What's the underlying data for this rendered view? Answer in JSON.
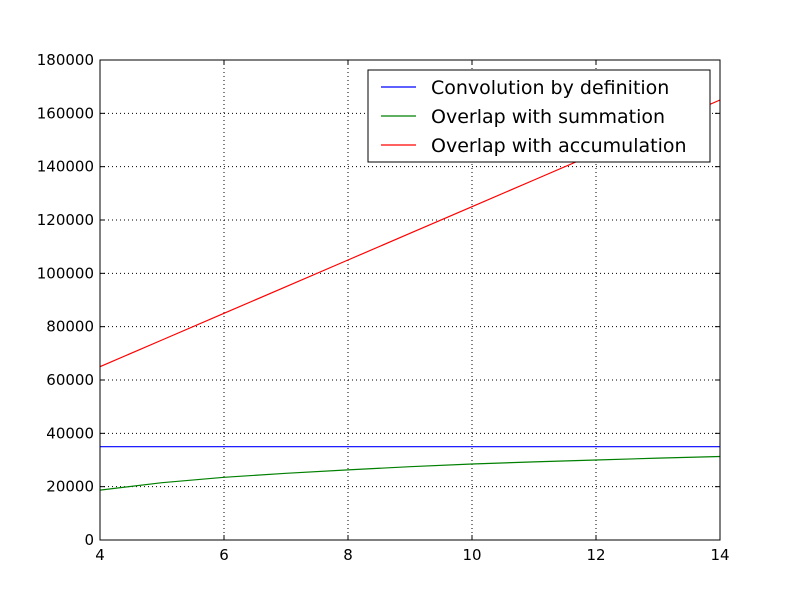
{
  "chart_data": {
    "type": "line",
    "title": "",
    "xlabel": "",
    "ylabel": "",
    "xlim": [
      4,
      14
    ],
    "ylim": [
      0,
      180000
    ],
    "x_ticks": [
      4,
      6,
      8,
      10,
      12,
      14
    ],
    "y_ticks": [
      0,
      20000,
      40000,
      60000,
      80000,
      100000,
      120000,
      140000,
      160000,
      180000
    ],
    "x_tick_labels": [
      "4",
      "6",
      "8",
      "10",
      "12",
      "14"
    ],
    "y_tick_labels": [
      "0",
      "20000",
      "40000",
      "60000",
      "80000",
      "100000",
      "120000",
      "140000",
      "160000",
      "180000"
    ],
    "grid": true,
    "legend_position": "top-right",
    "x": [
      4,
      5,
      6,
      7,
      8,
      9,
      10,
      11,
      12,
      13,
      14
    ],
    "series": [
      {
        "name": "Convolution by definition",
        "color": "#0000ff",
        "values": [
          35000,
          35000,
          35000,
          35000,
          35000,
          35000,
          35000,
          35000,
          35000,
          35000,
          35000
        ]
      },
      {
        "name": "Overlap with summation",
        "color": "#008000",
        "values": [
          18700,
          21500,
          23500,
          25000,
          26300,
          27500,
          28500,
          29300,
          30000,
          30700,
          31300
        ]
      },
      {
        "name": "Overlap with accumulation",
        "color": "#ff0000",
        "values": [
          65000,
          75000,
          85000,
          95000,
          105000,
          115000,
          125000,
          135000,
          145000,
          155000,
          165000
        ]
      }
    ]
  }
}
